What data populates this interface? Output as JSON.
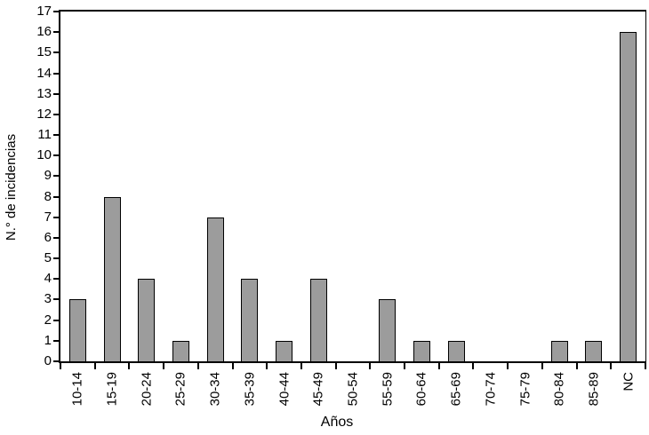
{
  "chart_data": {
    "type": "bar",
    "title": "",
    "categories": [
      "10-14",
      "15-19",
      "20-24",
      "25-29",
      "30-34",
      "35-39",
      "40-44",
      "45-49",
      "50-54",
      "55-59",
      "60-64",
      "65-69",
      "70-74",
      "75-79",
      "80-84",
      "85-89",
      "NC"
    ],
    "values": [
      3,
      8,
      4,
      1,
      7,
      4,
      1,
      4,
      0,
      3,
      1,
      1,
      0,
      0,
      1,
      1,
      16
    ],
    "xlabel": "Años",
    "ylabel": "N.° de incidencias",
    "ylim": [
      0,
      17
    ],
    "ytick_step": 1,
    "grid": "off",
    "legend": "none",
    "bar_color": "#9C9C9C",
    "bar_border_color": "#000000",
    "axis_color": "#000000",
    "background_color": "#FFFFFF",
    "tick_style": "boundary-ticks-between-categories",
    "x_label_rotation": -90
  }
}
